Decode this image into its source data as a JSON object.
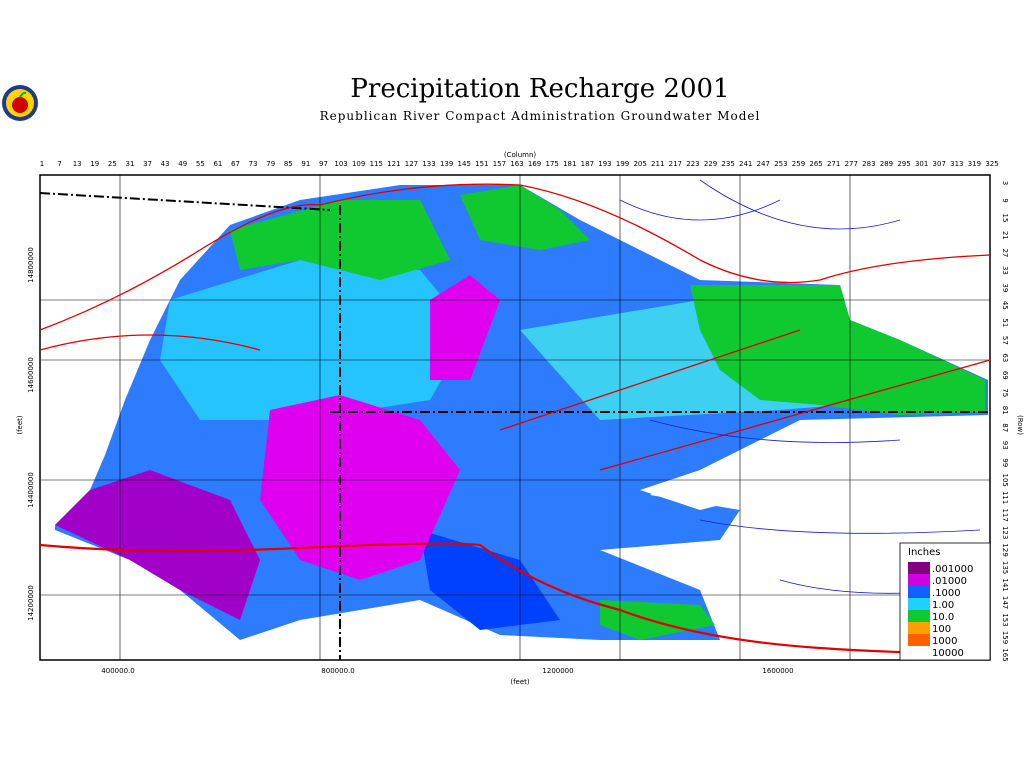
{
  "header": {
    "title": "Precipitation Recharge 2001",
    "subtitle": "Republican River Compact Administration Groundwater Model"
  },
  "axes": {
    "column_label": "(Column)",
    "columns": [
      1,
      7,
      13,
      19,
      25,
      31,
      37,
      43,
      49,
      55,
      61,
      67,
      73,
      79,
      85,
      91,
      97,
      103,
      109,
      115,
      121,
      127,
      133,
      139,
      145,
      151,
      157,
      163,
      169,
      175,
      181,
      187,
      193,
      199,
      205,
      211,
      217,
      223,
      229,
      235,
      241,
      247,
      253,
      259,
      265,
      271,
      277,
      283,
      289,
      295,
      301,
      307,
      313,
      319,
      325
    ],
    "row_label": "(Row)",
    "rows": [
      3,
      9,
      15,
      21,
      27,
      33,
      39,
      45,
      51,
      57,
      63,
      69,
      75,
      81,
      87,
      93,
      99,
      105,
      111,
      117,
      123,
      129,
      135,
      141,
      147,
      153,
      159,
      165
    ],
    "y_label": "(feet)",
    "y_ticks": [
      "14800000",
      "14600000",
      "14400000",
      "14200000"
    ],
    "x_label": "(feet)",
    "x_ticks": [
      "400000.0",
      "800000.0",
      "1200000",
      "1600000"
    ]
  },
  "legend": {
    "title": "Inches",
    "labels": [
      ".001000",
      ".01000",
      ".1000",
      "1.00",
      "10.0",
      "100",
      "1000",
      "10000"
    ]
  }
}
